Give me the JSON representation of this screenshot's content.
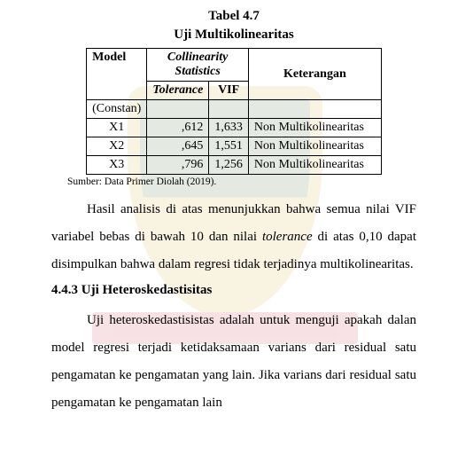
{
  "title": {
    "l1": "Tabel 4.7",
    "l2": "Uji Multikolinearitas"
  },
  "table": {
    "headers": {
      "model": "Model",
      "collinearity_l1": "Collinearity",
      "collinearity_l2": "Statistics",
      "keterangan": "Keterangan",
      "tolerance": "Tolerance",
      "vif": "VIF"
    },
    "rows": [
      {
        "label": "(Constan)",
        "tol": "",
        "vif": "",
        "ket": ""
      },
      {
        "label": "X1",
        "tol": ",612",
        "vif": "1,633",
        "ket": "Non Multikolinearitas"
      },
      {
        "label": "X2",
        "tol": ",645",
        "vif": "1,551",
        "ket": "Non Multikolinearitas"
      },
      {
        "label": "X3",
        "tol": ",796",
        "vif": "1,256",
        "ket": "Non Multikolinearitas"
      }
    ]
  },
  "source": "Sumber: Data Primer Diolah (2019).",
  "para1": {
    "t1": "Hasil analisis di atas menunjukkan bahwa semua nilai VIF variabel bebas di bawah 10 dan nilai ",
    "i1": "tolerance",
    "t2": " di atas 0,10 dapat disimpulkan bahwa dalam regresi tidak terjadinya multikolinearitas."
  },
  "heading": "4.4.3 Uji Heteroskedastisitas",
  "para2": "Uji heteroskedastisistas adalah untuk menguji  apakah dalan model regresi terjadi ketidaksamaan varians dari residual satu pengamatan ke pengamatan yang lain. Jika varians dari residual satu pengamatan ke pengamatan lain"
}
